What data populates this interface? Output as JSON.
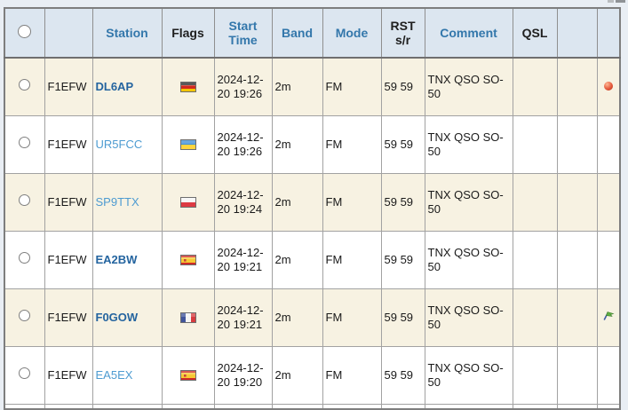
{
  "page": {
    "background": "#e9eef4"
  },
  "fragments": {
    "scrollbar_piece": "clipped gray element at top-right"
  },
  "table": {
    "headers": [
      {
        "key": "select",
        "label": "",
        "kind": "radio"
      },
      {
        "key": "owner",
        "label": "",
        "kind": "plain"
      },
      {
        "key": "station",
        "label": "Station",
        "kind": "link"
      },
      {
        "key": "flags",
        "label": "Flags",
        "kind": "plain"
      },
      {
        "key": "start",
        "label": "Start Time",
        "kind": "link"
      },
      {
        "key": "band",
        "label": "Band",
        "kind": "link"
      },
      {
        "key": "mode",
        "label": "Mode",
        "kind": "link"
      },
      {
        "key": "rst",
        "label": "RST s/r",
        "kind": "plain"
      },
      {
        "key": "comment",
        "label": "Comment",
        "kind": "link"
      },
      {
        "key": "qsl",
        "label": "QSL",
        "kind": "plain"
      },
      {
        "key": "extra1",
        "label": "",
        "kind": "plain"
      },
      {
        "key": "extra2",
        "label": "",
        "kind": "plain"
      }
    ],
    "rows": [
      {
        "owner": "F1EFW",
        "station": "DL6AP",
        "station_emphasis": "bold",
        "country": "de",
        "country_name": "germany-flag",
        "start": "2024-12-20 19:26",
        "band": "2m",
        "mode": "FM",
        "rst": "59 59",
        "comment": "TNX QSO SO-50",
        "qsl": "",
        "marker": "red-ball"
      },
      {
        "owner": "F1EFW",
        "station": "UR5FCC",
        "station_emphasis": "light",
        "country": "ua",
        "country_name": "ukraine-flag",
        "start": "2024-12-20 19:26",
        "band": "2m",
        "mode": "FM",
        "rst": "59 59",
        "comment": "TNX QSO SO-50",
        "qsl": "",
        "marker": ""
      },
      {
        "owner": "F1EFW",
        "station": "SP9TTX",
        "station_emphasis": "light",
        "country": "pl",
        "country_name": "poland-flag",
        "start": "2024-12-20 19:24",
        "band": "2m",
        "mode": "FM",
        "rst": "59 59",
        "comment": "TNX QSO SO-50",
        "qsl": "",
        "marker": ""
      },
      {
        "owner": "F1EFW",
        "station": "EA2BW",
        "station_emphasis": "bold",
        "country": "es",
        "country_name": "spain-flag",
        "start": "2024-12-20 19:21",
        "band": "2m",
        "mode": "FM",
        "rst": "59 59",
        "comment": "TNX QSO SO-50",
        "qsl": "",
        "marker": ""
      },
      {
        "owner": "F1EFW",
        "station": "F0GOW",
        "station_emphasis": "bold",
        "country": "fr",
        "country_name": "france-flag",
        "start": "2024-12-20 19:21",
        "band": "2m",
        "mode": "FM",
        "rst": "59 59",
        "comment": "TNX QSO SO-50",
        "qsl": "",
        "marker": "green-flag"
      },
      {
        "owner": "F1EFW",
        "station": "EA5EX",
        "station_emphasis": "light",
        "country": "es",
        "country_name": "spain-flag",
        "start": "2024-12-20 19:20",
        "band": "2m",
        "mode": "FM",
        "rst": "59 59",
        "comment": "TNX QSO SO-50",
        "qsl": "",
        "marker": ""
      }
    ]
  },
  "colors": {
    "header_bg": "#dce6f0",
    "row_odd_bg": "#f7f2e2",
    "row_even_bg": "#ffffff",
    "header_link": "#3377ab",
    "header_text": "#1f1f1f",
    "station_bold": "#24649f",
    "station_light": "#4d9bd1",
    "border": "#a2a2a2",
    "red_ball": "#c23a1d",
    "green_flag": "#5fae43"
  }
}
